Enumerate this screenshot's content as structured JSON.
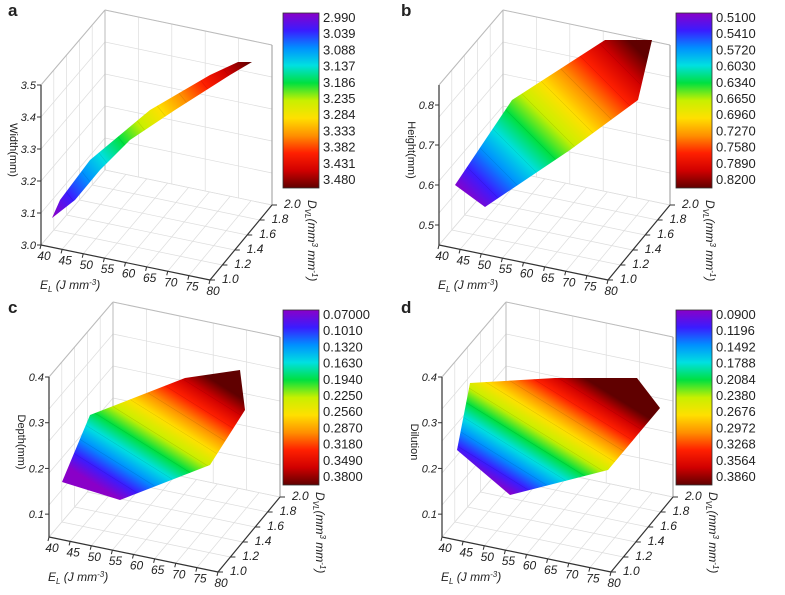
{
  "colors": {
    "rainbow": [
      "#8a00c8",
      "#3a1cff",
      "#0090ff",
      "#00e0e0",
      "#00e040",
      "#c8f000",
      "#ffe000",
      "#ff9000",
      "#ff2000",
      "#d00000",
      "#600000"
    ],
    "axis": "#333333",
    "grid": "#dddddd"
  },
  "chart_data": [
    {
      "type": "surface3d",
      "panel_label": "a",
      "xlabel": "E",
      "xlabel_sub": "L",
      "xlabel_unit": " (J mm",
      "xlabel_exp": "-3",
      "xlabel_close": ")",
      "ylabel": "D",
      "ylabel_sub": "VL",
      "ylabel_unit": "(mm",
      "ylabel_exp": "3",
      "ylabel_unit2": " mm",
      "ylabel_exp2": "-1",
      "ylabel_close": ")",
      "zlabel": "Width(mm)",
      "x_ticks": [
        "40",
        "45",
        "50",
        "55",
        "60",
        "65",
        "70",
        "75",
        "80"
      ],
      "y_ticks": [
        "1.0",
        "1.2",
        "1.4",
        "1.6",
        "1.8",
        "2.0"
      ],
      "z_ticks": [
        "3.0",
        "3.1",
        "3.2",
        "3.3",
        "3.4",
        "3.5"
      ],
      "xlim": [
        40,
        80
      ],
      "ylim": [
        1.0,
        2.0
      ],
      "zlim": [
        3.0,
        3.5
      ],
      "colorbar": [
        "2.990",
        "3.039",
        "3.088",
        "3.137",
        "3.186",
        "3.235",
        "3.284",
        "3.333",
        "3.382",
        "3.431",
        "3.480"
      ]
    },
    {
      "type": "surface3d",
      "panel_label": "b",
      "xlabel": "E",
      "xlabel_sub": "L",
      "xlabel_unit": " (J mm",
      "xlabel_exp": "-3",
      "xlabel_close": ")",
      "ylabel": "D",
      "ylabel_sub": "VL",
      "ylabel_unit": "(mm",
      "ylabel_exp": "3",
      "ylabel_unit2": " mm",
      "ylabel_exp2": "-1",
      "ylabel_close": ")",
      "zlabel": "Height(mm)",
      "x_ticks": [
        "40",
        "45",
        "50",
        "55",
        "60",
        "65",
        "70",
        "75",
        "80"
      ],
      "y_ticks": [
        "1.0",
        "1.2",
        "1.4",
        "1.6",
        "1.8",
        "2.0"
      ],
      "z_ticks": [
        "0.5",
        "0.6",
        "0.7",
        "0.8"
      ],
      "xlim": [
        40,
        80
      ],
      "ylim": [
        1.0,
        2.0
      ],
      "zlim": [
        0.45,
        0.85
      ],
      "colorbar": [
        "0.5100",
        "0.5410",
        "0.5720",
        "0.6030",
        "0.6340",
        "0.6650",
        "0.6960",
        "0.7270",
        "0.7580",
        "0.7890",
        "0.8200"
      ]
    },
    {
      "type": "surface3d",
      "panel_label": "c",
      "xlabel": "E",
      "xlabel_sub": "L",
      "xlabel_unit": " (J mm",
      "xlabel_exp": "-3",
      "xlabel_close": ")",
      "ylabel": "D",
      "ylabel_sub": "VL",
      "ylabel_unit": "(mm",
      "ylabel_exp": "3",
      "ylabel_unit2": " mm",
      "ylabel_exp2": "-1",
      "ylabel_close": ")",
      "zlabel": "Depth(mm)",
      "x_ticks": [
        "40",
        "45",
        "50",
        "55",
        "60",
        "65",
        "70",
        "75",
        "80"
      ],
      "y_ticks": [
        "1.0",
        "1.2",
        "1.4",
        "1.6",
        "1.8",
        "2.0"
      ],
      "z_ticks": [
        "0.1",
        "0.2",
        "0.3",
        "0.4"
      ],
      "xlim": [
        40,
        80
      ],
      "ylim": [
        1.0,
        2.0
      ],
      "zlim": [
        0.05,
        0.4
      ],
      "colorbar": [
        "0.07000",
        "0.1010",
        "0.1320",
        "0.1630",
        "0.1940",
        "0.2250",
        "0.2560",
        "0.2870",
        "0.3180",
        "0.3490",
        "0.3800"
      ]
    },
    {
      "type": "surface3d",
      "panel_label": "d",
      "xlabel": "E",
      "xlabel_sub": "L",
      "xlabel_unit": " (J mm",
      "xlabel_exp": "-3",
      "xlabel_close": ")",
      "ylabel": "D",
      "ylabel_sub": "VL",
      "ylabel_unit": "(mm",
      "ylabel_exp": "3",
      "ylabel_unit2": " mm",
      "ylabel_exp2": "-1",
      "ylabel_close": ")",
      "zlabel": "Dilution",
      "x_ticks": [
        "40",
        "45",
        "50",
        "55",
        "60",
        "65",
        "70",
        "75",
        "80"
      ],
      "y_ticks": [
        "1.0",
        "1.2",
        "1.4",
        "1.6",
        "1.8",
        "2.0"
      ],
      "z_ticks": [
        "0.1",
        "0.2",
        "0.3",
        "0.4"
      ],
      "xlim": [
        40,
        80
      ],
      "ylim": [
        1.0,
        2.0
      ],
      "zlim": [
        0.05,
        0.4
      ],
      "colorbar": [
        "0.0900",
        "0.1196",
        "0.1492",
        "0.1788",
        "0.2084",
        "0.2380",
        "0.2676",
        "0.2972",
        "0.3268",
        "0.3564",
        "0.3860"
      ]
    }
  ]
}
